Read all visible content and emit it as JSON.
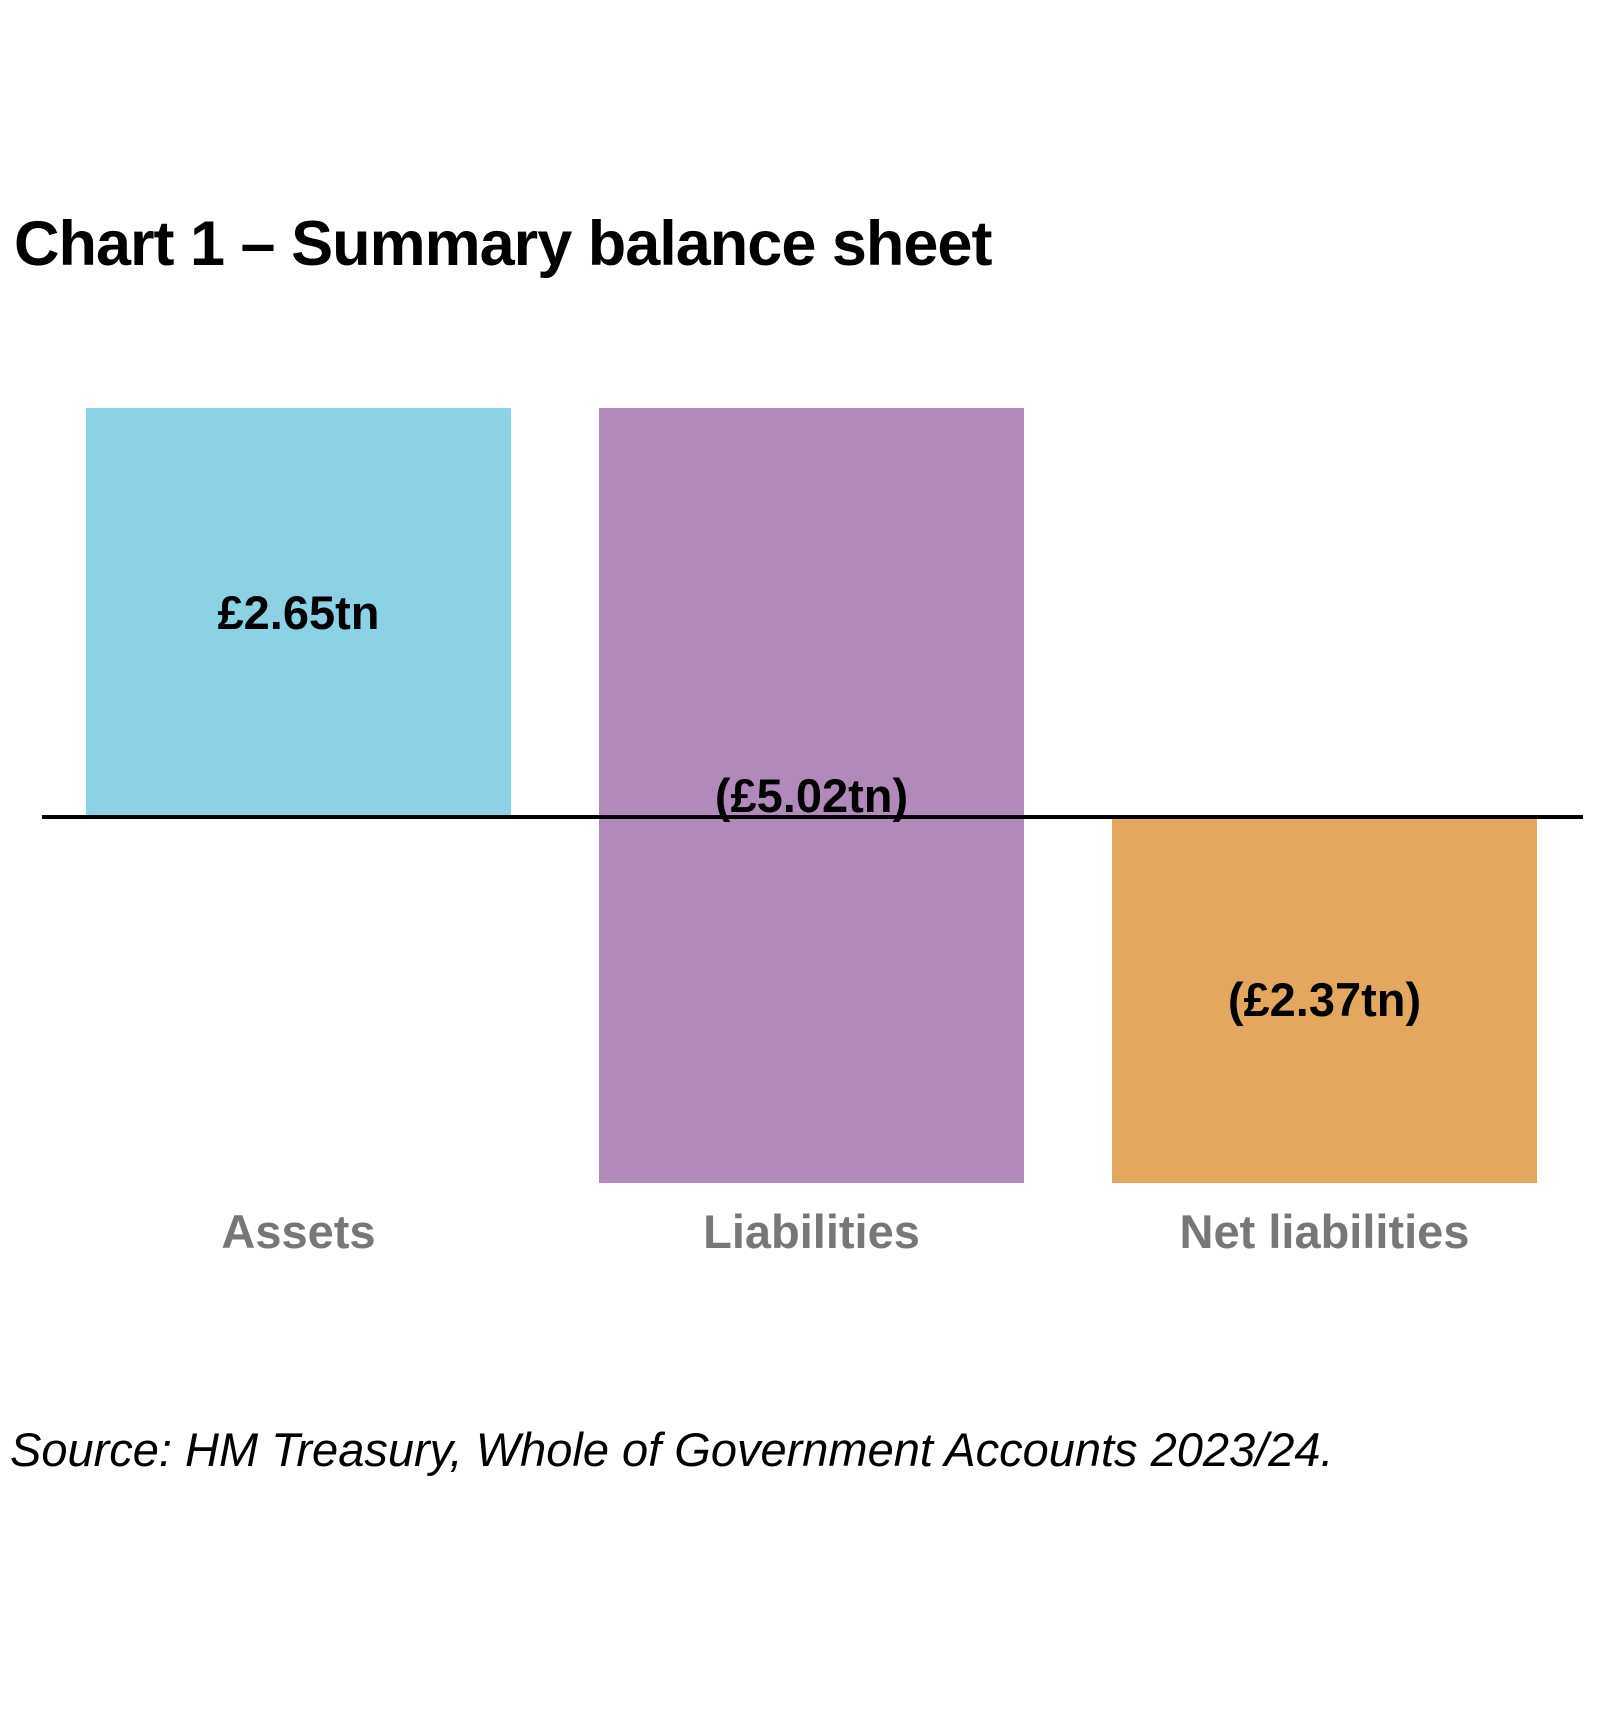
{
  "title": "Chart 1 – Summary balance sheet",
  "source": "Source: HM Treasury, Whole of Government Accounts 2023/24.",
  "colors": {
    "assets": "#8CD2E5",
    "liabilities": "#B18ABB",
    "net_liabilities": "#E4A75E",
    "axis": "#000000",
    "category_label": "#777777",
    "value_label": "#000000",
    "background": "#FFFFFF"
  },
  "chart_data": {
    "type": "bar",
    "subtype": "waterfall",
    "title": "Chart 1 – Summary balance sheet",
    "unit": "£ trillion",
    "baseline": 0,
    "ylim": [
      -2.37,
      2.65
    ],
    "grid": false,
    "legend": false,
    "categories": [
      "Assets",
      "Liabilities",
      "Net liabilities"
    ],
    "values": [
      2.65,
      -5.02,
      -2.37
    ],
    "bars": [
      {
        "category": "Assets",
        "value": 2.65,
        "display": "£2.65tn",
        "from": 0,
        "to": 2.65,
        "color_key": "assets"
      },
      {
        "category": "Liabilities",
        "value": -5.02,
        "display": "(£5.02tn)",
        "from": 2.65,
        "to": -2.37,
        "color_key": "liabilities"
      },
      {
        "category": "Net liabilities",
        "value": -2.37,
        "display": "(£2.37tn)",
        "from": 0,
        "to": -2.37,
        "color_key": "net_liabilities"
      }
    ],
    "source": "Source: HM Treasury, Whole of Government Accounts 2023/24."
  }
}
